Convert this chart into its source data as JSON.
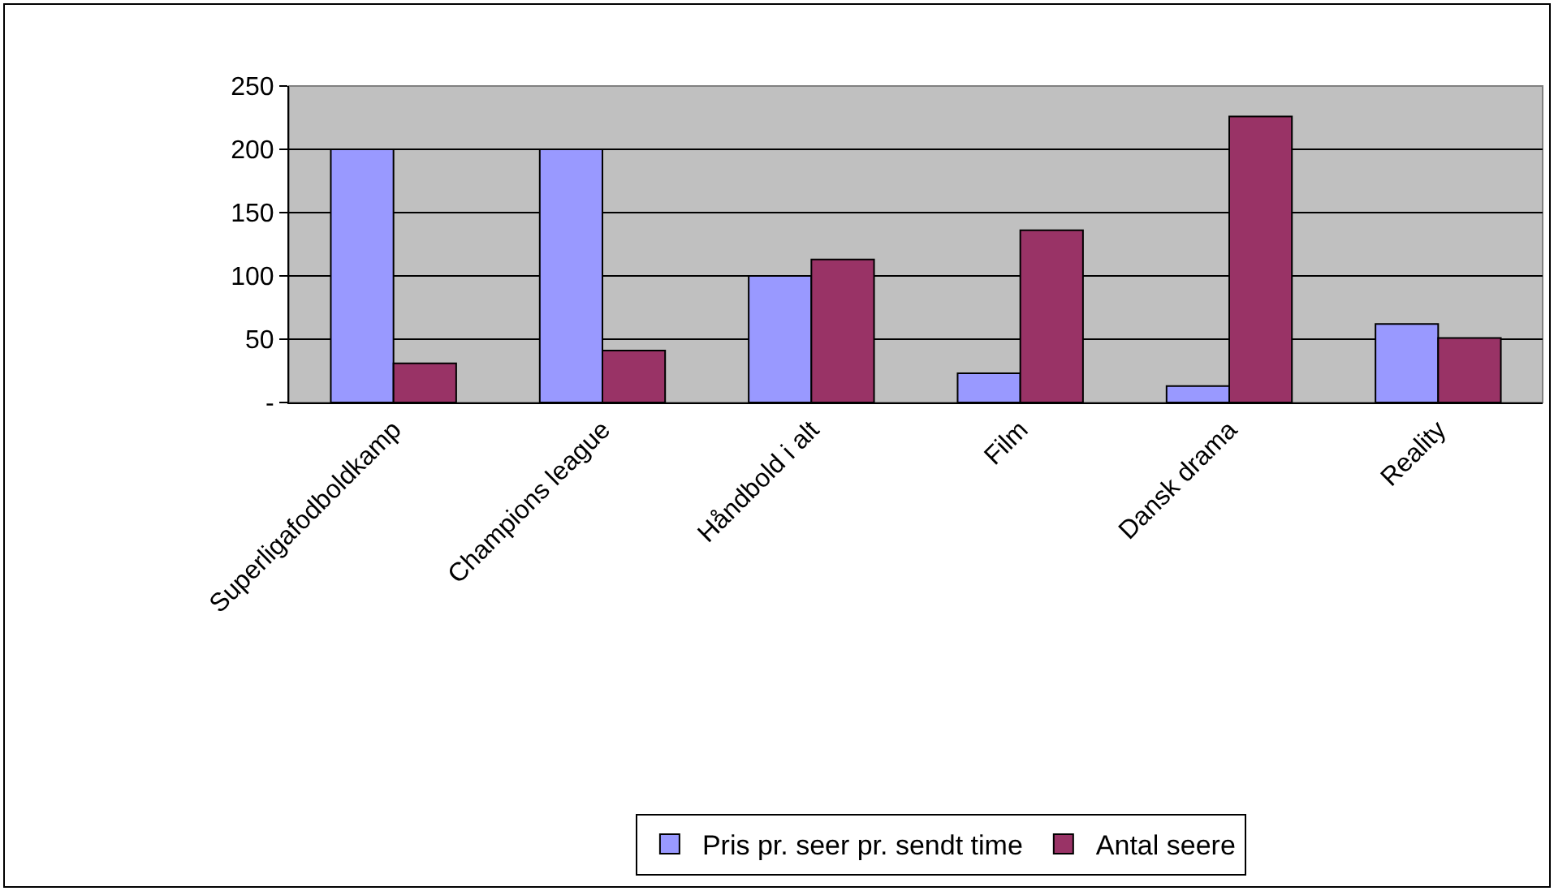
{
  "chart_data": {
    "type": "bar",
    "categories": [
      "Superligafodboldkamp",
      "Champions league",
      "Håndbold i alt",
      "Film",
      "Dansk drama",
      "Reality"
    ],
    "series": [
      {
        "name": "Pris pr. seer pr. sendt time",
        "color": "#9999ff",
        "values": [
          200,
          200,
          100,
          23,
          13,
          62
        ]
      },
      {
        "name": "Antal seere",
        "color": "#993366",
        "values": [
          31,
          41,
          113,
          136,
          226,
          51
        ]
      }
    ],
    "ylim": [
      0,
      250
    ],
    "yticks": [
      {
        "value": 0,
        "label": "-"
      },
      50,
      100,
      150,
      200,
      250
    ],
    "grid": "y",
    "legend": "bottom"
  }
}
